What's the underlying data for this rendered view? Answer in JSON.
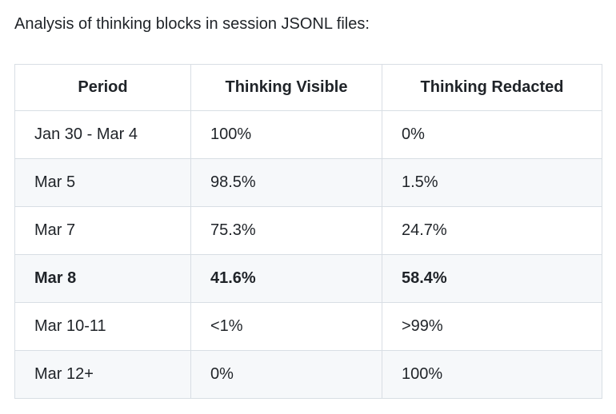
{
  "page": {
    "title": "Analysis of thinking blocks in session JSONL files:"
  },
  "table": {
    "columns": [
      "Period",
      "Thinking Visible",
      "Thinking Redacted"
    ],
    "rows": [
      {
        "period": "Jan 30 - Mar 4",
        "visible": "100%",
        "redacted": "0%",
        "bold": false
      },
      {
        "period": "Mar 5",
        "visible": "98.5%",
        "redacted": "1.5%",
        "bold": false
      },
      {
        "period": "Mar 7",
        "visible": "75.3%",
        "redacted": "24.7%",
        "bold": false
      },
      {
        "period": "Mar 8",
        "visible": "41.6%",
        "redacted": "58.4%",
        "bold": true
      },
      {
        "period": "Mar 10-11",
        "visible": "<1%",
        "redacted": ">99%",
        "bold": false
      },
      {
        "period": "Mar 12+",
        "visible": "0%",
        "redacted": "100%",
        "bold": false
      }
    ]
  },
  "colors": {
    "text": "#1f2328",
    "border": "#d8dee4",
    "zebra_row_background": "#f6f8fa",
    "background": "#ffffff"
  }
}
